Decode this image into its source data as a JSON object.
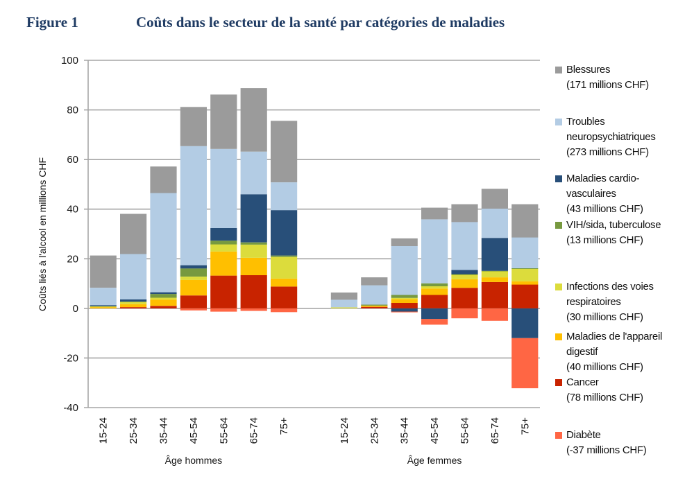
{
  "header": {
    "figure_number": "Figure 1",
    "figure_title": "Coûts dans le secteur de la santé par catégories de maladies"
  },
  "chart_data": {
    "type": "bar",
    "stacked": true,
    "title": "Coûts dans le secteur de la santé par catégories de maladies",
    "ylabel": "Coûts liés à l'alcool en millions CHF",
    "ylim": [
      -40,
      100
    ],
    "yticks": [
      100,
      80,
      60,
      40,
      20,
      0,
      -20,
      -40
    ],
    "grid": true,
    "legend_position": "right",
    "groups": [
      {
        "label": "Âge hommes",
        "categories": [
          "15-24",
          "25-34",
          "35-44",
          "45-54",
          "55-64",
          "65-74",
          "75+"
        ]
      },
      {
        "label": "Âge femmes",
        "categories": [
          "15-24",
          "25-34",
          "35-44",
          "45-54",
          "55-64",
          "65-74",
          "75+"
        ]
      }
    ],
    "series": [
      {
        "key": "cancer",
        "name": "Cancer",
        "total_label": "(78 millions CHF)",
        "color": "#c82300",
        "hommes": [
          0,
          0.5,
          1.0,
          5.2,
          13.2,
          13.4,
          8.8
        ],
        "femmes": [
          0,
          0.6,
          2.2,
          5.4,
          8.3,
          10.6,
          9.6
        ]
      },
      {
        "key": "digestive",
        "name": "Maladies de l'appareil digestif",
        "total_label": "(40 millions CHF)",
        "color": "#ffbf00",
        "hommes": [
          0.5,
          1.2,
          2.5,
          6.3,
          9.7,
          7.0,
          3.2
        ],
        "femmes": [
          0,
          0.5,
          1.5,
          2.6,
          3.4,
          1.9,
          1.3
        ]
      },
      {
        "key": "respiratory",
        "name": "Infections des voies respiratoires",
        "total_label": "(30 millions CHF)",
        "color": "#dcdc3c",
        "hommes": [
          0.3,
          0.8,
          0.8,
          1.3,
          2.9,
          5.3,
          8.7
        ],
        "femmes": [
          0.4,
          0,
          0.5,
          0.9,
          1.8,
          2.4,
          5.0
        ]
      },
      {
        "key": "hiv",
        "name": "VIH/sida, tuberculose",
        "total_label": "(13 millions CHF)",
        "color": "#77993f",
        "hommes": [
          0,
          0.3,
          1.5,
          3.3,
          1.5,
          0.9,
          0.6
        ],
        "femmes": [
          0,
          0.4,
          1.2,
          1.2,
          0.3,
          0.2,
          0.3
        ]
      },
      {
        "key": "cardio",
        "name": "Maladies cardio-vasculaires",
        "total_label": "(43 millions CHF)",
        "color": "#284f79",
        "hommes": [
          0.5,
          0.8,
          0.7,
          1.3,
          5.1,
          19.4,
          18.3
        ],
        "femmes": [
          0,
          0,
          -1.3,
          -4.3,
          1.7,
          13.3,
          -12.0
        ]
      },
      {
        "key": "neuro",
        "name": "Troubles neuropsychiatriques",
        "total_label": "(273 millions CHF)",
        "color": "#b3cce4",
        "hommes": [
          7.0,
          18.3,
          40.0,
          48.0,
          31.9,
          17.2,
          11.2
        ],
        "femmes": [
          3.1,
          7.8,
          19.7,
          25.8,
          19.3,
          11.8,
          12.4
        ]
      },
      {
        "key": "injuries",
        "name": "Blessures",
        "total_label": "(171 millions CHF)",
        "color": "#9b9b9b",
        "hommes": [
          13.0,
          16.2,
          10.7,
          15.8,
          21.9,
          25.6,
          24.8
        ],
        "femmes": [
          2.9,
          3.2,
          3.1,
          4.7,
          7.2,
          8.0,
          13.4
        ]
      },
      {
        "key": "diabetes",
        "name": "Diabète",
        "total_label": "(-37 millions CHF)",
        "color": "#ff6644",
        "hommes": [
          0,
          0,
          0,
          -0.8,
          -1.3,
          -1.0,
          -1.5
        ],
        "femmes": [
          0,
          0,
          -0.3,
          -2.3,
          -4.0,
          -5.0,
          -20.2
        ]
      }
    ]
  },
  "legend": [
    {
      "key": "injuries",
      "lines": [
        "Blessures",
        "(171 millions CHF)"
      ],
      "color": "#9b9b9b"
    },
    {
      "key": "neuro",
      "lines": [
        "Troubles",
        "neuropsychiatriques",
        "(273 millions CHF)"
      ],
      "color": "#b3cce4"
    },
    {
      "key": "cardio",
      "lines": [
        "Maladies cardio-",
        "vasculaires",
        "(43 millions CHF)"
      ],
      "color": "#284f79"
    },
    {
      "key": "hiv",
      "lines": [
        "VIH/sida, tuberculose",
        "(13 millions CHF)"
      ],
      "color": "#77993f"
    },
    {
      "key": "respiratory",
      "lines": [
        "Infections des voies",
        "respiratoires",
        "(30 millions CHF)"
      ],
      "color": "#dcdc3c"
    },
    {
      "key": "digestive",
      "lines": [
        "Maladies de l'appareil",
        "digestif",
        "(40 millions CHF)"
      ],
      "color": "#ffbf00"
    },
    {
      "key": "cancer",
      "lines": [
        "Cancer",
        "(78 millions CHF)"
      ],
      "color": "#c82300"
    },
    {
      "key": "diabetes",
      "lines": [
        "Diabète",
        "(-37 millions CHF)"
      ],
      "color": "#ff6644"
    }
  ]
}
